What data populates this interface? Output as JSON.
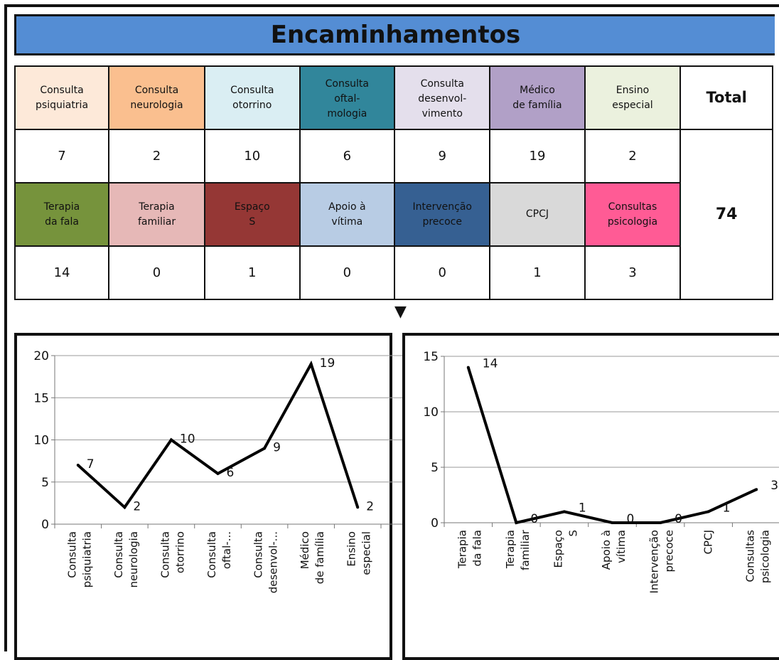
{
  "title": "Encaminhamentos",
  "total_label": "Total",
  "total_value": "74",
  "arrow": "▼",
  "row1": {
    "headers": [
      {
        "lines": [
          "Consulta",
          "psiquiatria"
        ],
        "color": "#fde9d9"
      },
      {
        "lines": [
          "Consulta",
          "neurologia"
        ],
        "color": "#fabf8f"
      },
      {
        "lines": [
          "Consulta",
          "otorrino"
        ],
        "color": "#daeef3"
      },
      {
        "lines": [
          "Consulta",
          "oftal-",
          "mologia"
        ],
        "color": "#31869b"
      },
      {
        "lines": [
          "Consulta",
          "desenvol-",
          "vimento"
        ],
        "color": "#e4dfec"
      },
      {
        "lines": [
          "Médico",
          "de família"
        ],
        "color": "#b1a0c7"
      },
      {
        "lines": [
          "Ensino",
          "especial"
        ],
        "color": "#ebf1de"
      }
    ],
    "values": [
      "7",
      "2",
      "10",
      "6",
      "9",
      "19",
      "2"
    ]
  },
  "row2": {
    "headers": [
      {
        "lines": [
          "Terapia",
          "da fala"
        ],
        "color": "#76933c"
      },
      {
        "lines": [
          "Terapia",
          "familiar"
        ],
        "color": "#e6b8b7"
      },
      {
        "lines": [
          "Espaço",
          "S"
        ],
        "color": "#953735"
      },
      {
        "lines": [
          "Apoio à",
          "vítima"
        ],
        "color": "#b8cce4"
      },
      {
        "lines": [
          "Intervenção",
          "precoce"
        ],
        "color": "#366092"
      },
      {
        "lines": [
          "CPCJ"
        ],
        "color": "#d9d9d9"
      },
      {
        "lines": [
          "Consultas",
          "psicologia"
        ],
        "color": "#ff5b95"
      }
    ],
    "values": [
      "14",
      "0",
      "1",
      "0",
      "0",
      "1",
      "3"
    ]
  },
  "chart_data": [
    {
      "type": "line",
      "categories": [
        [
          "Consulta",
          "psiquiatria"
        ],
        [
          "Consulta",
          "neurologia"
        ],
        [
          "Consulta",
          "otorrino"
        ],
        [
          "Consulta",
          "oftal-..."
        ],
        [
          "Consulta",
          "desenvol-..."
        ],
        [
          "Médico",
          "de família"
        ],
        [
          "Ensino",
          "especial"
        ]
      ],
      "values": [
        7,
        2,
        10,
        6,
        9,
        19,
        2
      ],
      "ylim": [
        0,
        20
      ],
      "yticks": [
        0,
        5,
        10,
        15,
        20
      ],
      "data_labels": true,
      "grid": true,
      "line_color": "#000000"
    },
    {
      "type": "line",
      "categories": [
        [
          "Terapia",
          "da fala"
        ],
        [
          "Terapia",
          "familiar"
        ],
        [
          "Espaço",
          "S"
        ],
        [
          "Apoio à",
          "vítima"
        ],
        [
          "Intervenção",
          "precoce"
        ],
        [
          "CPCJ"
        ],
        [
          "Consultas",
          "psicologia"
        ]
      ],
      "values": [
        14,
        0,
        1,
        0,
        0,
        1,
        3
      ],
      "ylim": [
        0,
        15
      ],
      "yticks": [
        0,
        5,
        10,
        15
      ],
      "data_labels": true,
      "grid": true,
      "line_color": "#000000"
    }
  ]
}
